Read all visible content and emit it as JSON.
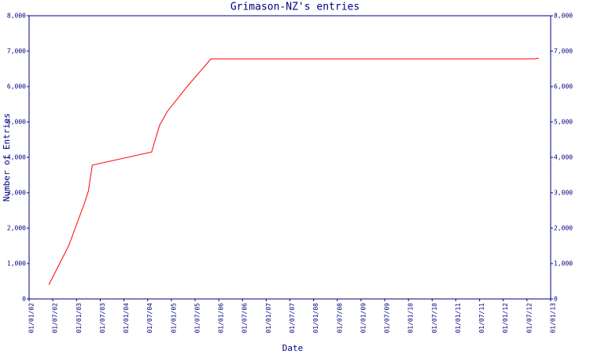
{
  "chart_data": {
    "type": "line",
    "title": "Grimason-NZ's entries",
    "xlabel": "Date",
    "ylabel": "Number of Entries",
    "x": [
      "2002-06",
      "2002-11",
      "2003-03",
      "2003-04",
      "2003-05",
      "2004-08",
      "2004-10",
      "2004-12",
      "2005-05",
      "2005-11",
      "2012-09",
      "2012-10"
    ],
    "values": [
      400,
      1500,
      2700,
      3050,
      3780,
      4150,
      4900,
      5300,
      6000,
      6780,
      6780,
      6800
    ],
    "color": "#ff0000",
    "xlim": [
      "2002-01",
      "2013-01"
    ],
    "xticks": [
      {
        "value": "2002-01",
        "label": "01/01/02"
      },
      {
        "value": "2002-07",
        "label": "01/07/02"
      },
      {
        "value": "2003-01",
        "label": "01/01/03"
      },
      {
        "value": "2003-07",
        "label": "01/07/03"
      },
      {
        "value": "2004-01",
        "label": "01/01/04"
      },
      {
        "value": "2004-07",
        "label": "01/07/04"
      },
      {
        "value": "2005-01",
        "label": "01/01/05"
      },
      {
        "value": "2005-07",
        "label": "01/07/05"
      },
      {
        "value": "2006-01",
        "label": "01/01/06"
      },
      {
        "value": "2006-07",
        "label": "01/07/06"
      },
      {
        "value": "2007-01",
        "label": "01/01/07"
      },
      {
        "value": "2007-07",
        "label": "01/07/07"
      },
      {
        "value": "2008-01",
        "label": "01/01/08"
      },
      {
        "value": "2008-07",
        "label": "01/07/08"
      },
      {
        "value": "2009-01",
        "label": "01/01/09"
      },
      {
        "value": "2009-07",
        "label": "01/07/09"
      },
      {
        "value": "2010-01",
        "label": "01/01/10"
      },
      {
        "value": "2010-07",
        "label": "01/07/10"
      },
      {
        "value": "2011-01",
        "label": "01/01/11"
      },
      {
        "value": "2011-07",
        "label": "01/07/11"
      },
      {
        "value": "2012-01",
        "label": "01/01/12"
      },
      {
        "value": "2012-07",
        "label": "01/07/12"
      },
      {
        "value": "2013-01",
        "label": "01/01/13"
      }
    ],
    "ylim": [
      0,
      8000
    ],
    "yticks": [
      0,
      {
        "value": 1000,
        "label": "1,000"
      },
      {
        "value": 2000,
        "label": "2,000"
      },
      {
        "value": 3000,
        "label": "3,000"
      },
      {
        "value": 4000,
        "label": "4,000"
      },
      {
        "value": 5000,
        "label": "5,000"
      },
      {
        "value": 6000,
        "label": "6,000"
      },
      {
        "value": 7000,
        "label": "7,000"
      },
      {
        "value": 8000,
        "label": "8,000"
      }
    ],
    "grid": false
  }
}
